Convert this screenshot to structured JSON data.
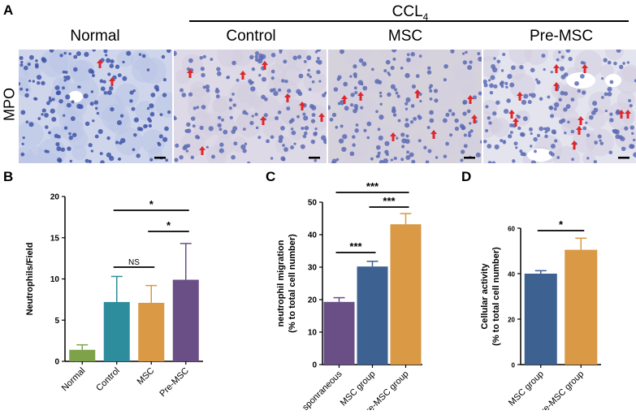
{
  "panel_a": {
    "letter": "A",
    "group_header": "CCL4",
    "group_header_main": "CCL",
    "group_header_sub": "4",
    "columns": [
      "Normal",
      "Control",
      "MSC",
      "Pre-MSC"
    ],
    "row_label": "MPO",
    "arrow_color": "#e0262a",
    "tissue_color": "#b8c4e3"
  },
  "chart_data": [
    {
      "panel": "B",
      "type": "bar",
      "categories": [
        "Normal",
        "Control",
        "MSC",
        "Pre-MSC"
      ],
      "values": [
        1.4,
        7.2,
        7.1,
        9.9
      ],
      "errors": [
        0.6,
        3.1,
        2.1,
        4.4
      ],
      "colors": [
        "#7ea24a",
        "#2e8d9c",
        "#d99945",
        "#6a4f86"
      ],
      "ylabel": "Neutrophils/Field",
      "ylim": [
        0,
        20
      ],
      "yticks": [
        0,
        5,
        10,
        15,
        20
      ],
      "annotations": [
        {
          "from": 1,
          "to": 3,
          "label": "*"
        },
        {
          "from": 2,
          "to": 3,
          "label": "*"
        },
        {
          "from": 1,
          "to": 2,
          "label": "NS"
        }
      ]
    },
    {
      "panel": "C",
      "type": "bar",
      "categories": [
        "sponraneous",
        "MSC group",
        "pre-MSC group"
      ],
      "values": [
        19.3,
        30.2,
        43.2
      ],
      "errors": [
        1.3,
        1.6,
        3.3
      ],
      "colors": [
        "#6a4f86",
        "#3d6190",
        "#d99945"
      ],
      "ylabel": "neutrophil migration",
      "ylabel2": "(% to total cell number)",
      "ylim": [
        0,
        50
      ],
      "yticks": [
        0,
        10,
        20,
        30,
        40,
        50
      ],
      "annotations": [
        {
          "from": 0,
          "to": 2,
          "label": "***"
        },
        {
          "from": 1,
          "to": 2,
          "label": "***"
        },
        {
          "from": 0,
          "to": 1,
          "label": "***"
        }
      ]
    },
    {
      "panel": "D",
      "type": "bar",
      "categories": [
        "MSC group",
        "pre-MSC group"
      ],
      "values": [
        40,
        50.5
      ],
      "errors": [
        1.3,
        5.1
      ],
      "colors": [
        "#3d6190",
        "#d99945"
      ],
      "ylabel": "Cellular activity",
      "ylabel2": "(% to total cell number)",
      "ylim": [
        0,
        60
      ],
      "yticks": [
        0,
        20,
        40,
        60
      ],
      "annotations": [
        {
          "from": 0,
          "to": 1,
          "label": "*"
        }
      ]
    }
  ]
}
